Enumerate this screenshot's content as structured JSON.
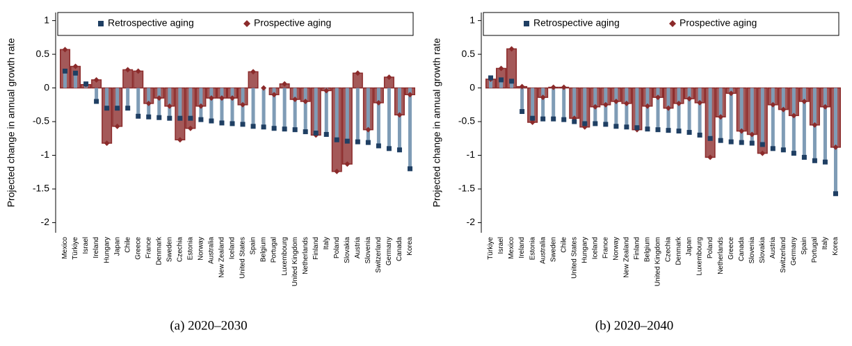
{
  "chart_data": [
    {
      "type": "bar",
      "caption": "(a) 2020–2030",
      "y_label": "Projected change in annual growth rate",
      "categories": [
        "Mexico",
        "Türkiye",
        "Israel",
        "Ireland",
        "Hungary",
        "Japan",
        "Chile",
        "Greece",
        "France",
        "Denmark",
        "Sweden",
        "Czechia",
        "Estonia",
        "Norway",
        "Australia",
        "New Zealand",
        "Iceland",
        "United States",
        "Spain",
        "Belgium",
        "Portugal",
        "Luxembourg",
        "United Kingdom",
        "Netherlands",
        "Finland",
        "Italy",
        "Poland",
        "Slovakia",
        "Austria",
        "Slovenia",
        "Switzerland",
        "Germany",
        "Canada",
        "Korea"
      ],
      "series": [
        {
          "name": "Retrospective aging",
          "color": "#1f3f63",
          "values": [
            0.25,
            0.22,
            0.06,
            -0.2,
            -0.3,
            -0.3,
            -0.3,
            -0.42,
            -0.43,
            -0.44,
            -0.45,
            -0.45,
            -0.45,
            -0.47,
            -0.49,
            -0.52,
            -0.53,
            -0.54,
            -0.57,
            -0.58,
            -0.6,
            -0.61,
            -0.62,
            -0.65,
            -0.67,
            -0.69,
            -0.77,
            -0.79,
            -0.8,
            -0.81,
            -0.86,
            -0.9,
            -0.92,
            -1.2
          ]
        },
        {
          "name": "Prospective aging",
          "color": "#8b2a2a",
          "values": [
            0.57,
            0.32,
            0.05,
            0.12,
            -0.82,
            -0.57,
            0.27,
            0.25,
            -0.23,
            -0.15,
            -0.27,
            -0.77,
            -0.6,
            -0.27,
            -0.15,
            -0.15,
            -0.15,
            -0.25,
            0.24,
            0.0,
            -0.1,
            0.06,
            -0.17,
            -0.2,
            -0.7,
            -0.04,
            -1.24,
            -1.13,
            0.22,
            -0.62,
            -0.22,
            0.16,
            -0.4,
            -0.1
          ]
        }
      ],
      "ylim": [
        -2.15,
        1.12
      ],
      "yticks": [
        -2,
        -1.5,
        -1,
        -0.5,
        0,
        0.5,
        1
      ]
    },
    {
      "type": "bar",
      "caption": "(b) 2020–2040",
      "y_label": "Projected change in annual growth rate",
      "categories": [
        "Türkiye",
        "Israel",
        "Mexico",
        "Ireland",
        "Estonia",
        "Australia",
        "Sweden",
        "Chile",
        "United States",
        "Hungary",
        "Iceland",
        "France",
        "Norway",
        "New Zealand",
        "Finland",
        "Belgium",
        "United Kingdom",
        "Czechia",
        "Denmark",
        "Japan",
        "Luxembourg",
        "Poland",
        "Netherlands",
        "Greece",
        "Canada",
        "Slovenia",
        "Slovakia",
        "Austria",
        "Switzerland",
        "Germany",
        "Spain",
        "Portugal",
        "Italy",
        "Korea"
      ],
      "series": [
        {
          "name": "Retrospective aging",
          "color": "#1f3f63",
          "values": [
            0.15,
            0.12,
            0.1,
            -0.35,
            -0.45,
            -0.46,
            -0.46,
            -0.47,
            -0.5,
            -0.53,
            -0.53,
            -0.54,
            -0.57,
            -0.58,
            -0.59,
            -0.61,
            -0.62,
            -0.63,
            -0.64,
            -0.66,
            -0.7,
            -0.75,
            -0.78,
            -0.8,
            -0.81,
            -0.82,
            -0.84,
            -0.9,
            -0.92,
            -0.97,
            -1.03,
            -1.08,
            -1.1,
            -1.57
          ]
        },
        {
          "name": "Prospective aging",
          "color": "#8b2a2a",
          "values": [
            0.13,
            0.29,
            0.58,
            0.02,
            -0.51,
            -0.14,
            0.01,
            0.01,
            -0.45,
            -0.58,
            -0.28,
            -0.25,
            -0.2,
            -0.23,
            -0.62,
            -0.27,
            -0.14,
            -0.3,
            -0.23,
            -0.16,
            -0.22,
            -1.03,
            -0.43,
            -0.08,
            -0.64,
            -0.69,
            -0.97,
            -0.25,
            -0.32,
            -0.41,
            -0.2,
            -0.55,
            -0.28,
            -0.88
          ]
        }
      ],
      "ylim": [
        -2.15,
        1.12
      ],
      "yticks": [
        -2,
        -1.5,
        -1,
        -0.5,
        0,
        0.5,
        1
      ]
    }
  ]
}
